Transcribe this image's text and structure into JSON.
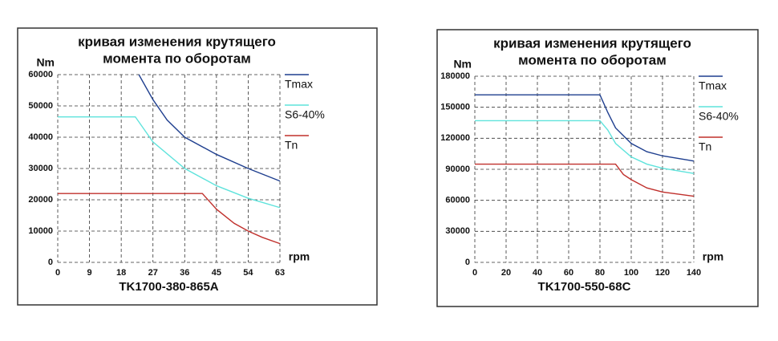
{
  "chart_data": [
    {
      "type": "line",
      "title": [
        "кривая изменения крутящего",
        "момента по оборотам"
      ],
      "y_label": "Nm",
      "x_label": "rpm",
      "caption": "TK1700-380-865A",
      "xlim": [
        0,
        63
      ],
      "ylim": [
        0,
        60000
      ],
      "xticks": [
        0,
        9,
        18,
        27,
        36,
        45,
        54,
        63
      ],
      "yticks": [
        0,
        10000,
        20000,
        30000,
        40000,
        50000,
        60000
      ],
      "grid": true,
      "series": [
        {
          "name": "Tmax",
          "color": "#1f3f8f",
          "x": [
            23,
            27,
            31,
            36,
            45,
            54,
            63
          ],
          "values": [
            60000,
            52000,
            45500,
            40000,
            34500,
            30000,
            26000
          ]
        },
        {
          "name": "S6-40%",
          "color": "#5fe3dc",
          "x": [
            0,
            22,
            27,
            36,
            45,
            54,
            63
          ],
          "values": [
            46500,
            46500,
            38500,
            30000,
            24500,
            20500,
            17500
          ]
        },
        {
          "name": "Tn",
          "color": "#c0302c",
          "x": [
            0,
            41,
            45,
            50,
            54,
            58,
            63
          ],
          "values": [
            22000,
            22000,
            17000,
            12500,
            10000,
            8000,
            6000
          ]
        }
      ]
    },
    {
      "type": "line",
      "title": [
        "кривая изменения крутящего",
        "момента по оборотам"
      ],
      "y_label": "Nm",
      "x_label": "rpm",
      "caption": "TK1700-550-68C",
      "xlim": [
        0,
        140
      ],
      "ylim": [
        0,
        180000
      ],
      "xticks": [
        0,
        20,
        40,
        60,
        80,
        100,
        120,
        140
      ],
      "yticks": [
        0,
        30000,
        60000,
        90000,
        120000,
        150000,
        180000
      ],
      "grid": true,
      "series": [
        {
          "name": "Tmax",
          "color": "#1f3f8f",
          "x": [
            0,
            80,
            85,
            90,
            100,
            110,
            120,
            140
          ],
          "values": [
            162000,
            162000,
            145000,
            130000,
            115000,
            107000,
            103000,
            98000
          ]
        },
        {
          "name": "S6-40%",
          "color": "#5fe3dc",
          "x": [
            0,
            80,
            85,
            90,
            100,
            110,
            120,
            140
          ],
          "values": [
            137000,
            137000,
            128000,
            115000,
            102000,
            95000,
            91000,
            86000
          ]
        },
        {
          "name": "Tn",
          "color": "#c0302c",
          "x": [
            0,
            90,
            95,
            100,
            110,
            120,
            140
          ],
          "values": [
            95000,
            95000,
            85000,
            80000,
            72000,
            68000,
            64000
          ]
        }
      ]
    }
  ]
}
